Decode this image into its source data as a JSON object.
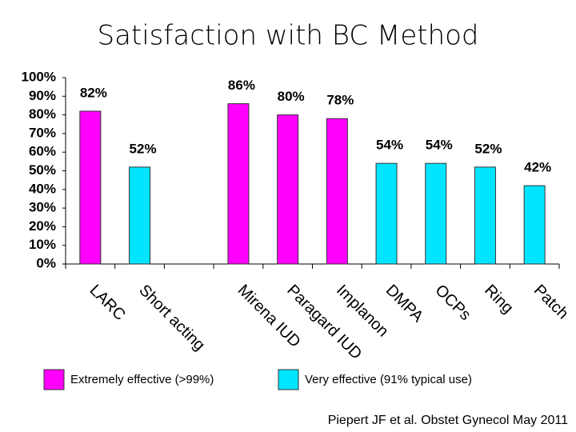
{
  "chart_data": {
    "type": "bar",
    "title": "Satisfaction with BC Method",
    "source": "Piepert JF et al. Obstet Gynecol May 2011",
    "categories": [
      "LARC",
      "Short acting",
      null,
      "Mirena IUD",
      "Paragard IUD",
      "Implanon",
      "DMPA",
      "OCPs",
      "Ring",
      "Patch"
    ],
    "series": [
      {
        "name": "Extremely effective (>99%)",
        "color": "#ff00ff",
        "values": [
          82,
          null,
          null,
          86,
          80,
          78,
          null,
          null,
          null,
          null
        ],
        "value_labels": [
          "82%",
          null,
          null,
          "86%",
          "80%",
          "78%",
          null,
          null,
          null,
          null
        ]
      },
      {
        "name": "Very effective (91% typical use)",
        "color": "#00e5ff",
        "values": [
          null,
          52,
          null,
          null,
          null,
          null,
          54,
          54,
          52,
          42
        ],
        "value_labels": [
          null,
          "52%",
          null,
          null,
          null,
          null,
          "54%",
          "54%",
          "52%",
          "42%"
        ]
      }
    ],
    "ylim": [
      0,
      100
    ],
    "yticks": [
      {
        "value": 0,
        "label": "0%"
      },
      {
        "value": 10,
        "label": "10%"
      },
      {
        "value": 20,
        "label": "20%"
      },
      {
        "value": 30,
        "label": "30%"
      },
      {
        "value": 40,
        "label": "40%"
      },
      {
        "value": 50,
        "label": "50%"
      },
      {
        "value": 60,
        "label": "60%"
      },
      {
        "value": 70,
        "label": "70%"
      },
      {
        "value": 80,
        "label": "80%"
      },
      {
        "value": 90,
        "label": "90%"
      },
      {
        "value": 100,
        "label": "100%"
      }
    ],
    "grid": false
  }
}
